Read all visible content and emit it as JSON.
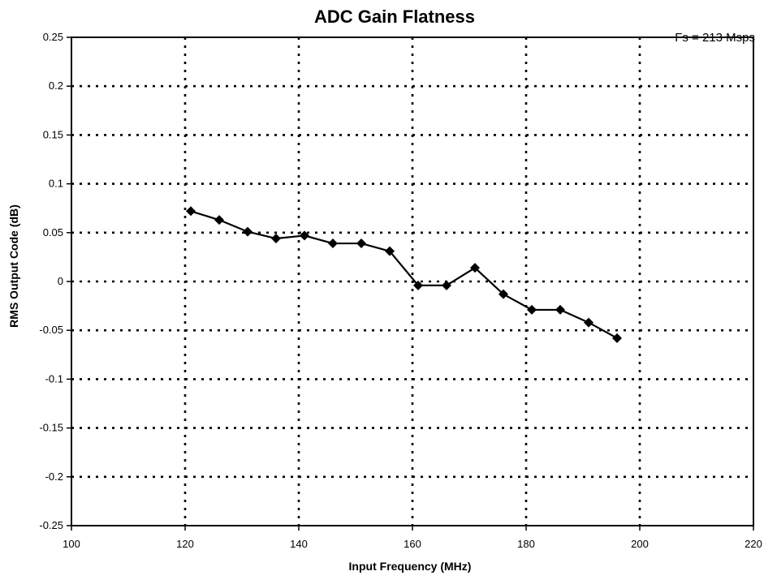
{
  "chart_data": {
    "type": "line",
    "title": "ADC Gain Flatness",
    "annotation": "Fs = 213 Msps",
    "xlabel": "Input Frequency (MHz)",
    "ylabel": "RMS Output Code (dB)",
    "xlim": [
      100,
      220
    ],
    "ylim": [
      -0.25,
      0.25
    ],
    "x_ticks": [
      100,
      120,
      140,
      160,
      180,
      200,
      220
    ],
    "y_ticks": [
      0.25,
      0.2,
      0.15,
      0.1,
      0.05,
      0,
      -0.05,
      -0.1,
      -0.15,
      -0.2,
      -0.25
    ],
    "x_tick_labels": [
      "100",
      "120",
      "140",
      "160",
      "180",
      "200",
      "220"
    ],
    "y_tick_labels": [
      "0.25",
      "0.2",
      "0.15",
      "0.1",
      "0.05",
      "0",
      "-0.05",
      "-0.1",
      "-0.15",
      "-0.2",
      "-0.25"
    ],
    "grid": true,
    "legend": false,
    "marker": "diamond",
    "series": [
      {
        "x": [
          121,
          126,
          131,
          136,
          141,
          146,
          151,
          156,
          161,
          166,
          171,
          176,
          181,
          186,
          191,
          196
        ],
        "y": [
          0.072,
          0.063,
          0.051,
          0.044,
          0.047,
          0.039,
          0.039,
          0.031,
          -0.004,
          -0.004,
          0.014,
          -0.013,
          -0.029,
          -0.029,
          -0.042,
          -0.058
        ]
      }
    ]
  }
}
